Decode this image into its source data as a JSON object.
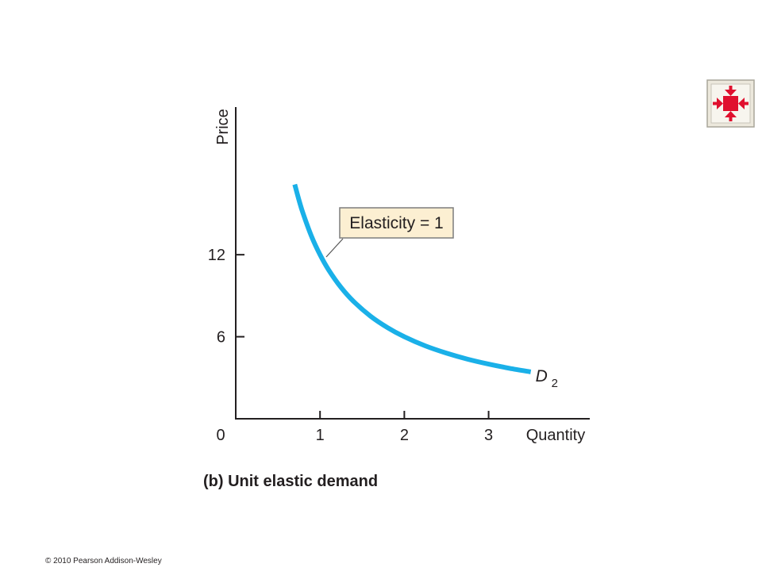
{
  "chart_data": {
    "type": "line",
    "x_label": "Quantity",
    "y_label": "Price",
    "x": [
      0.7,
      0.75,
      0.8,
      0.9,
      1,
      1.1,
      1.25,
      1.4,
      1.6,
      1.8,
      2,
      2.25,
      2.5,
      2.75,
      3,
      3.25,
      3.5
    ],
    "series": [
      {
        "name": "D",
        "subscript": "2",
        "color": "#1ab0e8",
        "values": [
          17.14,
          16,
          15,
          13.33,
          12,
          10.91,
          9.6,
          8.57,
          7.5,
          6.67,
          6,
          5.33,
          4.8,
          4.36,
          4,
          3.69,
          3.43
        ]
      }
    ],
    "xlim": [
      0,
      4.2
    ],
    "ylim": [
      0,
      22.8
    ],
    "xticks": [
      0,
      1,
      2,
      3
    ],
    "yticks": [
      6,
      12
    ],
    "annotation": "Elasticity = 1",
    "caption": "(b) Unit elastic demand"
  },
  "footer": "© 2010 Pearson Addison-Wesley"
}
